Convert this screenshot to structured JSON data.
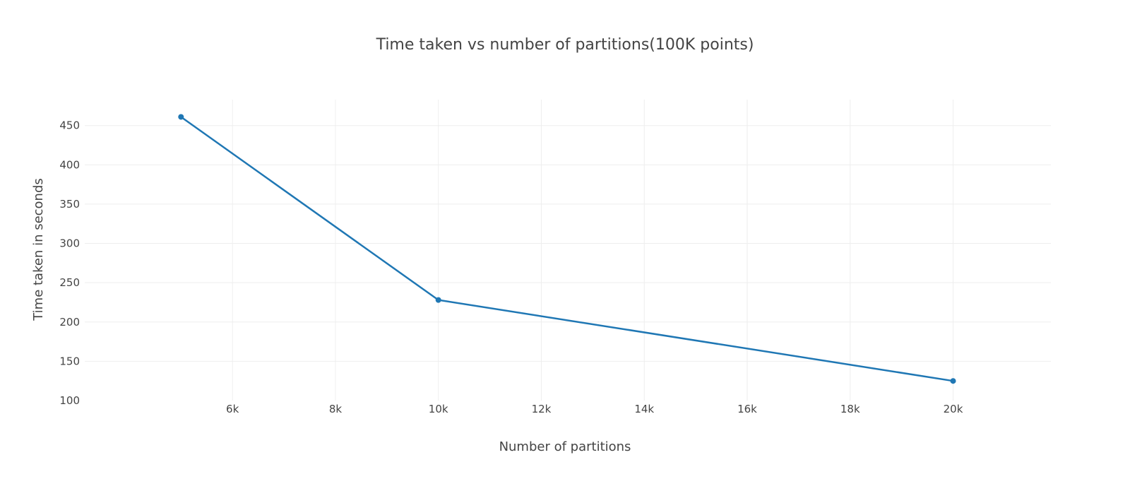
{
  "chart_data": {
    "type": "line",
    "title": "Time taken vs number of partitions(100K points)",
    "xlabel": "Number of partitions",
    "ylabel": "Time taken in seconds",
    "xlim": [
      3130,
      21900
    ],
    "ylim": [
      100,
      483
    ],
    "x_ticks": [
      {
        "value": 6000,
        "label": "6k"
      },
      {
        "value": 8000,
        "label": "8k"
      },
      {
        "value": 10000,
        "label": "10k"
      },
      {
        "value": 12000,
        "label": "12k"
      },
      {
        "value": 14000,
        "label": "14k"
      },
      {
        "value": 16000,
        "label": "16k"
      },
      {
        "value": 18000,
        "label": "18k"
      },
      {
        "value": 20000,
        "label": "20k"
      }
    ],
    "y_ticks": [
      {
        "value": 100,
        "label": "100"
      },
      {
        "value": 150,
        "label": "150"
      },
      {
        "value": 200,
        "label": "200"
      },
      {
        "value": 250,
        "label": "250"
      },
      {
        "value": 300,
        "label": "300"
      },
      {
        "value": 350,
        "label": "350"
      },
      {
        "value": 400,
        "label": "400"
      },
      {
        "value": 450,
        "label": "450"
      }
    ],
    "grid": true,
    "legend": "none",
    "series": [
      {
        "color": "#1f77b4",
        "x": [
          5000,
          10000,
          20000
        ],
        "y": [
          461,
          228,
          125
        ]
      }
    ]
  }
}
